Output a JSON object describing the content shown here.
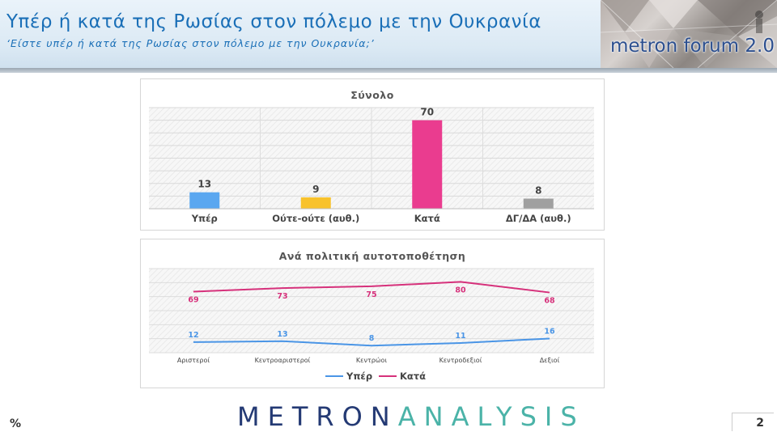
{
  "header": {
    "title": "Υπέρ ή κατά της Ρωσίας στον πόλεμο με την Ουκρανία",
    "subtitle": "‘Είστε υπέρ ή κατά της Ρωσίας στον πόλεμο με την Ουκρανία;’",
    "logo_text": "metron forum 2.0"
  },
  "footer": {
    "brand_part1": "METRON",
    "brand_part2": "ANALYSIS",
    "percent_sign": "%",
    "page_number": "2"
  },
  "colors": {
    "title": "#1a6fb7",
    "upper": "#5aa7f0",
    "neither": "#f8c22c",
    "kata": "#ea3c8f",
    "dk": "#a0a0a0",
    "line_yper": "#4a95e6",
    "line_kata": "#d6317b"
  },
  "chart_data": [
    {
      "type": "bar",
      "title": "Σύνολο",
      "categories": [
        "Υπέρ",
        "Ούτε-ούτε (αυθ.)",
        "Κατά",
        "ΔΓ/ΔΑ (αυθ.)"
      ],
      "values": [
        13,
        9,
        70,
        8
      ],
      "colors": [
        "#5aa7f0",
        "#f8c22c",
        "#ea3c8f",
        "#a0a0a0"
      ],
      "ylim": [
        0,
        80
      ],
      "grid": true,
      "legend": "none"
    },
    {
      "type": "line",
      "title": "Ανά πολιτική αυτοτοποθέτηση",
      "categories": [
        "Αριστεροί",
        "Κεντροαριστεροί",
        "Κεντρώοι",
        "Κεντροδεξιοί",
        "Δεξιοί"
      ],
      "series": [
        {
          "name": "Υπέρ",
          "values": [
            12,
            13,
            8,
            11,
            16
          ],
          "color": "#4a95e6"
        },
        {
          "name": "Κατά",
          "values": [
            69,
            73,
            75,
            80,
            68
          ],
          "color": "#d6317b"
        }
      ],
      "ylim": [
        0,
        95
      ],
      "grid": true,
      "legend": "bottom"
    }
  ]
}
